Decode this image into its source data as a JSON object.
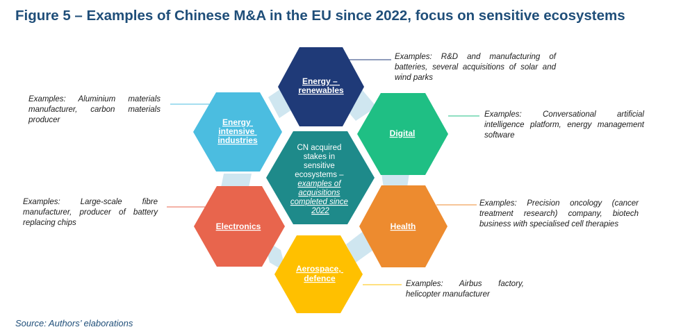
{
  "title": "Figure 5 – Examples of Chinese M&A in the EU since 2022, focus on sensitive ecosystems",
  "source": "Source: Authors’ elaborations",
  "colors": {
    "title": "#1F4E79",
    "energy_renewables": "#1F3A78",
    "digital": "#1FBF84",
    "health": "#ED8B2F",
    "aerospace": "#FFC000",
    "electronics": "#E8654D",
    "energy_intensive": "#4BBDE0",
    "center": "#1E8A8A",
    "connector": "#CFE6F0"
  },
  "center": {
    "lines": [
      "CN acquired",
      "stakes in",
      "sensitive",
      "ecosystems –"
    ],
    "emphasis_lines": [
      "examples of",
      "acquisitions",
      "completed since",
      "2022"
    ]
  },
  "sectors": {
    "energy_renewables": {
      "label_lines": [
        "Energy –",
        "renewables"
      ],
      "examples": "Examples: R&D and manufacturing of batteries, several acquisitions of solar and wind parks"
    },
    "digital": {
      "label_lines": [
        "Digital"
      ],
      "examples": "Examples: Conversational artificial intelligence platform, energy management software"
    },
    "health": {
      "label_lines": [
        "Health"
      ],
      "examples": "Examples: Precision oncology (cancer treatment research) company, biotech business with specialised cell therapies"
    },
    "aerospace_defence": {
      "label_lines": [
        "Aerospace,",
        "defence"
      ],
      "examples": "Examples: Airbus factory, helicopter manufacturer"
    },
    "electronics": {
      "label_lines": [
        "Electronics"
      ],
      "examples": "Examples: Large-scale fibre manufacturer, producer of battery replacing chips"
    },
    "energy_intensive": {
      "label_lines": [
        "Energy",
        "intensive",
        "industries"
      ],
      "examples": "Examples: Aluminium materials manufacturer, carbon materials producer"
    }
  }
}
